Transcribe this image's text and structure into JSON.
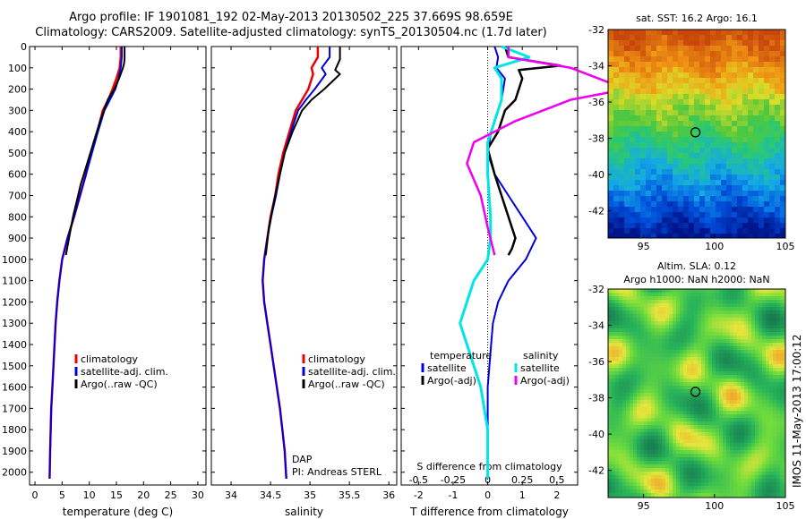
{
  "title": {
    "line1": "Argo profile: IF 1901081_192 02-May-2013 20130502_225 37.669S 98.659E",
    "line2": "Climatology: CARS2009. Satellite-adjusted climatology: synTS_20130504.nc (1.7d later)"
  },
  "stamp": "IMOS 11-May-2013 17:00:12",
  "colors": {
    "climatology": "#ee0000",
    "satellite": "#0000dd",
    "argo": "#000000",
    "sal_satellite": "#00e5e5",
    "sal_argo": "#ee00ee"
  },
  "chart_data": [
    {
      "name": "temperature-profile",
      "type": "line",
      "xlabel": "temperature (deg C)",
      "xlim": [
        -1,
        31.5
      ],
      "xticks": [
        0,
        5,
        10,
        15,
        20,
        25,
        30
      ],
      "ylim": [
        2060,
        0
      ],
      "yticks": [
        0,
        100,
        200,
        300,
        400,
        500,
        600,
        700,
        800,
        900,
        1000,
        1100,
        1200,
        1300,
        1400,
        1500,
        1600,
        1700,
        1800,
        1900,
        2000
      ],
      "legend": [
        "climatology",
        "satellite-adj. clim.",
        "Argo(..raw -QC)"
      ],
      "series": [
        {
          "name": "climatology",
          "x": [
            15.8,
            15.8,
            15.6,
            15.0,
            14.3,
            13.5,
            12.5,
            11.5,
            10.4,
            9.4,
            8.3,
            7.2,
            6.0,
            5.0,
            4.5,
            4.1,
            3.8,
            3.6,
            3.4,
            3.2,
            3.0,
            2.9,
            2.8,
            2.7
          ],
          "y": [
            0,
            50,
            100,
            150,
            200,
            250,
            300,
            400,
            500,
            600,
            700,
            800,
            900,
            1000,
            1100,
            1200,
            1300,
            1400,
            1500,
            1600,
            1700,
            1800,
            1900,
            2030
          ]
        },
        {
          "name": "satellite-adj. clim.",
          "x": [
            16.0,
            16.0,
            15.8,
            15.4,
            14.8,
            13.8,
            12.8,
            11.6,
            10.5,
            9.4,
            8.3,
            7.2,
            6.0,
            5.0,
            4.5,
            4.1,
            3.8,
            3.6,
            3.4,
            3.2,
            3.0,
            2.9,
            2.8,
            2.7
          ],
          "y": [
            0,
            50,
            100,
            150,
            200,
            250,
            300,
            400,
            500,
            600,
            700,
            800,
            900,
            1000,
            1100,
            1200,
            1300,
            1400,
            1500,
            1600,
            1700,
            1800,
            1900,
            2030
          ]
        },
        {
          "name": "Argo(..raw -QC)",
          "x": [
            16.5,
            16.5,
            16.4,
            16.2,
            15.5,
            14.6,
            13.4,
            12.0,
            10.8,
            9.6,
            8.4,
            7.0,
            5.7
          ],
          "y": [
            0,
            60,
            80,
            100,
            150,
            200,
            250,
            350,
            450,
            550,
            650,
            800,
            980
          ]
        }
      ]
    },
    {
      "name": "salinity-profile",
      "type": "line",
      "xlabel": "salinity",
      "xlim": [
        33.75,
        36.1
      ],
      "xticks": [
        34,
        34.5,
        35,
        35.5,
        36
      ],
      "ylim": [
        2060,
        0
      ],
      "legend": [
        "climatology",
        "satellite-adj. clim.",
        "Argo(..raw -QC)"
      ],
      "annotation": [
        "DAP",
        "PI: Andreas STERL"
      ],
      "series": [
        {
          "name": "climatology",
          "x": [
            35.1,
            35.1,
            35.02,
            35.04,
            34.98,
            34.9,
            34.82,
            34.74,
            34.66,
            34.6,
            34.56,
            34.5,
            34.46,
            34.42,
            34.4,
            34.42,
            34.46,
            34.5,
            34.54,
            34.58,
            34.62,
            34.65,
            34.68,
            34.7
          ],
          "y": [
            0,
            50,
            100,
            130,
            200,
            250,
            300,
            400,
            500,
            600,
            700,
            800,
            900,
            1000,
            1100,
            1200,
            1300,
            1400,
            1500,
            1600,
            1700,
            1800,
            1900,
            2030
          ]
        },
        {
          "name": "satellite-adj. clim.",
          "x": [
            35.25,
            35.25,
            35.15,
            35.2,
            35.06,
            34.95,
            34.85,
            34.76,
            34.68,
            34.62,
            34.57,
            34.51,
            34.46,
            34.42,
            34.4,
            34.42,
            34.46,
            34.5,
            34.54,
            34.58,
            34.62,
            34.65,
            34.68,
            34.7
          ],
          "y": [
            0,
            50,
            100,
            130,
            200,
            250,
            300,
            400,
            500,
            600,
            700,
            800,
            900,
            1000,
            1100,
            1200,
            1300,
            1400,
            1500,
            1600,
            1700,
            1800,
            1900,
            2030
          ]
        },
        {
          "name": "Argo(..raw -QC)",
          "x": [
            35.38,
            35.38,
            35.32,
            35.38,
            35.18,
            35.02,
            34.9,
            34.78,
            34.68,
            34.62,
            34.56,
            34.48,
            34.44
          ],
          "y": [
            0,
            60,
            110,
            130,
            200,
            250,
            300,
            400,
            500,
            600,
            700,
            850,
            980
          ]
        }
      ]
    },
    {
      "name": "difference-profile",
      "type": "line",
      "xlabel": "T difference from climatology",
      "xlabel_top": "S difference from climatology",
      "xlim": [
        -2.5,
        2.6
      ],
      "xticks": [
        -2,
        -1,
        0,
        1,
        2
      ],
      "xticks_top": [
        -0.5,
        -0.25,
        0,
        0.25,
        0.5
      ],
      "xticklabels_top": [
        "-0.5",
        "-0.25",
        "0",
        "0.25",
        "0.5"
      ],
      "ylim": [
        2060,
        0
      ],
      "legend_headers": [
        "temperature",
        "salinity"
      ],
      "legend": [
        "satellite",
        "Argo(-adj)",
        "satellite",
        "Argo(-adj)"
      ],
      "series": [
        {
          "name": "temperature satellite",
          "x": [
            0.2,
            0.3,
            0.25,
            0.5,
            0.4,
            0.3,
            0.2,
            0.1,
            0.0,
            0.2,
            0.6,
            1.0,
            1.4,
            1.1,
            0.6,
            0.3,
            0.15,
            0.1,
            0.05,
            0.0,
            0.0,
            0.0,
            0.0
          ],
          "y": [
            0,
            50,
            100,
            150,
            250,
            300,
            350,
            400,
            500,
            600,
            700,
            800,
            900,
            1000,
            1100,
            1200,
            1300,
            1400,
            1500,
            1600,
            1700,
            1800,
            2030
          ]
        },
        {
          "name": "temperature Argo(-adj)",
          "x": [
            0.5,
            0.6,
            2.1,
            0.9,
            1.0,
            0.8,
            0.5,
            0.3,
            0.0,
            0.2,
            0.4,
            0.6,
            0.8,
            0.7,
            0.6
          ],
          "y": [
            0,
            50,
            90,
            110,
            150,
            250,
            300,
            400,
            480,
            600,
            700,
            800,
            900,
            950,
            980
          ]
        },
        {
          "name": "salinity satellite",
          "x": [
            0.1,
            0.3,
            0.05,
            0.1,
            0.1,
            0.05,
            0.0,
            0.0,
            0.02,
            0.02,
            0.0,
            -0.1,
            -0.15,
            -0.2,
            -0.15,
            -0.1,
            -0.05,
            0.0,
            0.0,
            0.0
          ],
          "y": [
            0,
            50,
            100,
            150,
            250,
            350,
            450,
            600,
            800,
            900,
            1000,
            1100,
            1200,
            1300,
            1400,
            1500,
            1600,
            1800,
            1900,
            2030
          ]
        },
        {
          "name": "salinity Argo(-adj)",
          "x": [
            0.15,
            0.15,
            0.6,
            0.8,
            1.0,
            0.6,
            0.2,
            -0.1,
            -0.15,
            -0.05,
            0.0,
            0.05
          ],
          "y": [
            0,
            50,
            100,
            150,
            200,
            250,
            350,
            450,
            550,
            700,
            850,
            980
          ]
        }
      ]
    },
    {
      "name": "sst-map",
      "type": "heatmap",
      "title": "sat. SST: 16.2 Argo: 16.1",
      "xlim": [
        92.5,
        105
      ],
      "ylim": [
        -43.5,
        -32
      ],
      "xticks": [
        95,
        100,
        105
      ],
      "yticks": [
        -32,
        -34,
        -36,
        -38,
        -40,
        -42
      ],
      "marker": {
        "lon": 98.659,
        "lat": -37.669
      }
    },
    {
      "name": "sla-map",
      "type": "heatmap",
      "title": "Altim. SLA: 0.12",
      "subtitle": "Argo h1000: NaN h2000: NaN",
      "xlim": [
        92.5,
        105
      ],
      "ylim": [
        -43.5,
        -32
      ],
      "xticks": [
        95,
        100,
        105
      ],
      "yticks": [
        -32,
        -34,
        -36,
        -38,
        -40,
        -42
      ],
      "marker": {
        "lon": 98.659,
        "lat": -37.669
      }
    }
  ]
}
